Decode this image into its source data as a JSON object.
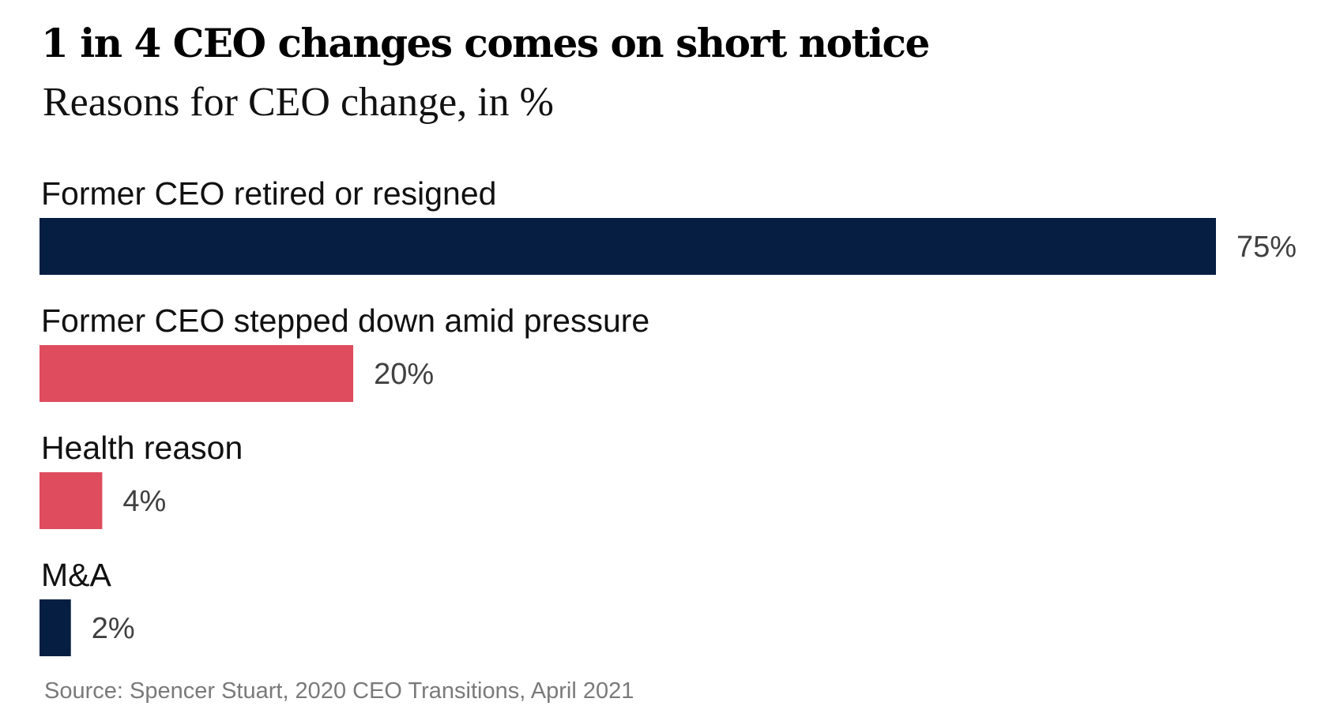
{
  "colors": {
    "navy": "#051E42",
    "red": "#DE4C5D"
  },
  "chart_data": {
    "type": "bar",
    "orientation": "horizontal",
    "title": "1 in 4 CEO changes comes on short notice",
    "subtitle": "Reasons for CEO change, in %",
    "categories": [
      "Former CEO retired or resigned",
      "Former CEO stepped down amid pressure",
      "Health reason",
      "M&A"
    ],
    "values": [
      75,
      20,
      4,
      2
    ],
    "value_labels": [
      "75%",
      "20%",
      "4%",
      "2%"
    ],
    "bar_colors": [
      "#051E42",
      "#DE4C5D",
      "#DE4C5D",
      "#051E42"
    ],
    "xlim": [
      0,
      75
    ],
    "grid": false,
    "legend": "none",
    "source": "Source: Spencer Stuart, 2020 CEO Transitions, April 2021"
  }
}
